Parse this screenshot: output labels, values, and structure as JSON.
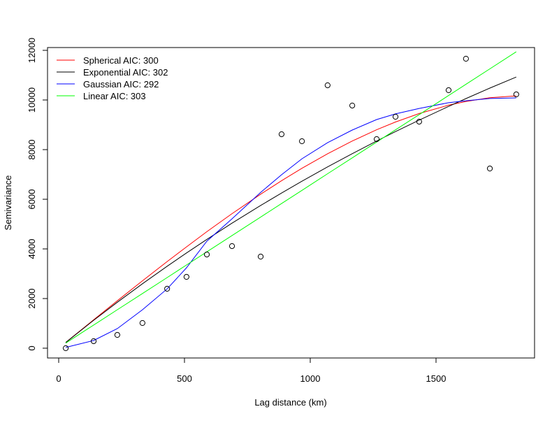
{
  "chart_data": {
    "type": "scatter",
    "title": "",
    "xlabel": "Lag distance (km)",
    "ylabel": "Semivariance",
    "xlim": [
      0,
      1900
    ],
    "ylim": [
      -300,
      12200
    ],
    "xticks": [
      0,
      500,
      1000,
      1500
    ],
    "yticks": [
      0,
      2000,
      4000,
      6000,
      8000,
      10000,
      12000
    ],
    "grid": false,
    "legend_position": "top-left",
    "points": {
      "x": [
        28,
        139,
        233,
        333,
        431,
        508,
        589,
        689,
        803,
        886,
        967,
        1069,
        1167,
        1264,
        1339,
        1433,
        1550,
        1619,
        1714,
        1819
      ],
      "y": [
        0,
        282,
        535,
        1014,
        2394,
        2873,
        3775,
        4113,
        3690,
        8620,
        8338,
        10592,
        9775,
        8423,
        9324,
        9127,
        10394,
        11662,
        7239,
        10225
      ]
    },
    "series": [
      {
        "name": "Spherical AIC: 300",
        "color": "#ff0000",
        "values": [
          231,
          1144,
          1911,
          2716,
          3490,
          4083,
          4693,
          5419,
          6206,
          6748,
          7248,
          7833,
          8347,
          8801,
          9113,
          9453,
          9791,
          9942,
          10089,
          10166
        ]
      },
      {
        "name": "Exponential AIC: 302",
        "color": "#000000",
        "values": [
          231,
          1124,
          1852,
          2598,
          3302,
          3838,
          4384,
          5038,
          5751,
          6252,
          6727,
          7303,
          7837,
          8346,
          8727,
          9189,
          9742,
          10057,
          10478,
          10925
        ]
      },
      {
        "name": "Gaussian AIC: 292",
        "color": "#0000ff",
        "values": [
          30,
          310,
          790,
          1550,
          2390,
          3240,
          4310,
          5210,
          6280,
          6990,
          7630,
          8280,
          8790,
          9210,
          9440,
          9660,
          9890,
          9970,
          10060,
          10085
        ]
      },
      {
        "name": "Linear AIC: 303",
        "color": "#00ff00",
        "values": [
          205,
          933,
          1549,
          2204,
          2846,
          3351,
          3882,
          4537,
          5284,
          5828,
          6359,
          7027,
          7669,
          8305,
          8796,
          9412,
          10179,
          10631,
          11254,
          11942
        ]
      }
    ]
  }
}
